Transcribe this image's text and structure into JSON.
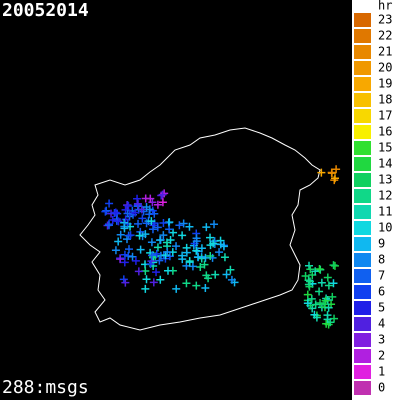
{
  "header": {
    "title": "20052014",
    "count": "288:msgs"
  },
  "legend": {
    "title": "hr",
    "items": [
      {
        "label": "23",
        "color": "#d86800"
      },
      {
        "label": "22",
        "color": "#e07800"
      },
      {
        "label": "21",
        "color": "#e88800"
      },
      {
        "label": "20",
        "color": "#f09800"
      },
      {
        "label": "19",
        "color": "#f8a800"
      },
      {
        "label": "18",
        "color": "#f8c000"
      },
      {
        "label": "17",
        "color": "#f8d800"
      },
      {
        "label": "16",
        "color": "#f8f000"
      },
      {
        "label": "15",
        "color": "#30e030"
      },
      {
        "label": "14",
        "color": "#20d840"
      },
      {
        "label": "13",
        "color": "#10d060"
      },
      {
        "label": "12",
        "color": "#10d888"
      },
      {
        "label": "11",
        "color": "#10d8b0"
      },
      {
        "label": "10",
        "color": "#10d8e0"
      },
      {
        "label": "9",
        "color": "#10b8f0"
      },
      {
        "label": "8",
        "color": "#1088f0"
      },
      {
        "label": "7",
        "color": "#1060f0"
      },
      {
        "label": "6",
        "color": "#1040f0"
      },
      {
        "label": "5",
        "color": "#2020e8"
      },
      {
        "label": "4",
        "color": "#5020e0"
      },
      {
        "label": "3",
        "color": "#8020e0"
      },
      {
        "label": "2",
        "color": "#b020e0"
      },
      {
        "label": "1",
        "color": "#e020e0"
      },
      {
        "label": "0",
        "color": "#c030b0"
      }
    ]
  }
}
